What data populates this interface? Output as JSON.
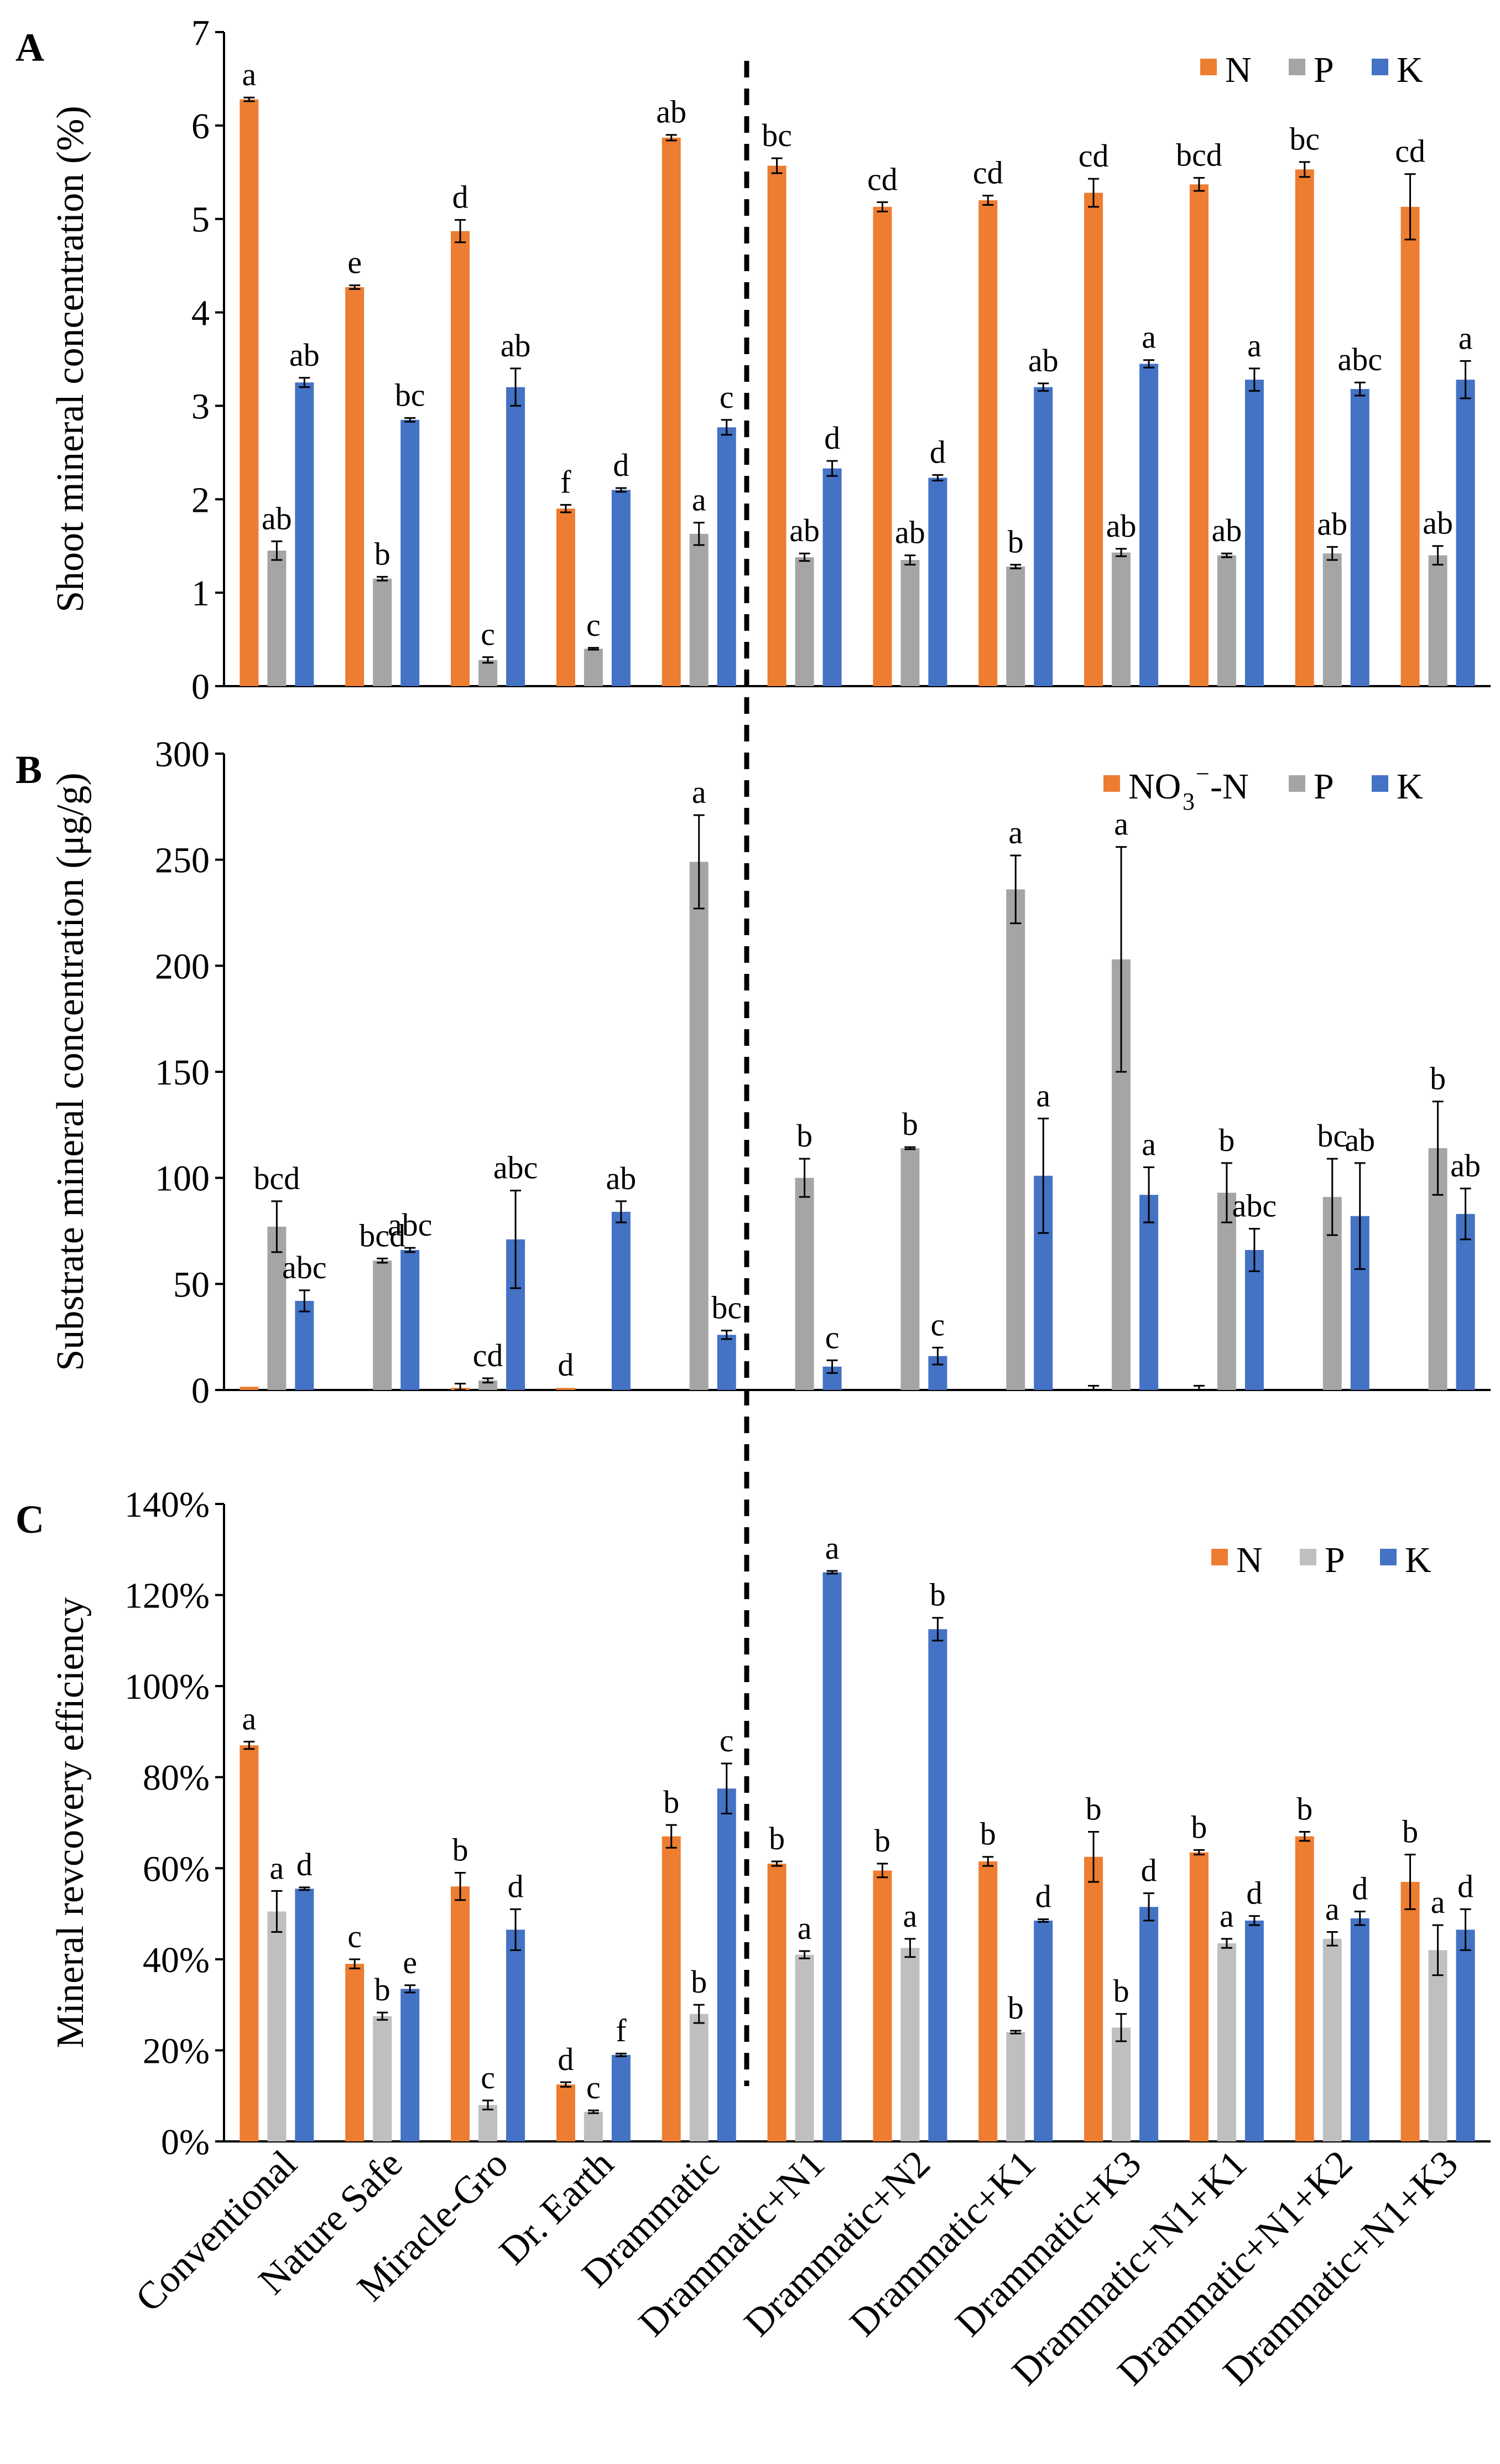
{
  "colors": {
    "N": "#ED7D31",
    "P_grey": "#A5A5A5",
    "P_light": "#BFBFBF",
    "K": "#4472C4",
    "axis": "#000000"
  },
  "categories": [
    "Conventional",
    "Nature Safe",
    "Miracle-Gro",
    "Dr. Earth",
    "Drammatic",
    "Drammatic+N1",
    "Drammatic+N2",
    "Drammatic+K1",
    "Drammatic+K3",
    "Drammatic+N1+K1",
    "Drammatic+N1+K2",
    "Drammatic+N1+K3"
  ],
  "chart_data": [
    {
      "type": "bar",
      "panel_label": "A",
      "ylabel": "Shoot mineral concentration (%)",
      "ylim": [
        0,
        7
      ],
      "yticks": [
        "0",
        "1",
        "2",
        "3",
        "4",
        "5",
        "6",
        "7"
      ],
      "legend": [
        "N",
        "P",
        "K"
      ],
      "legend_position": "top-right",
      "categories": [
        "Conventional",
        "Nature Safe",
        "Miracle-Gro",
        "Dr. Earth",
        "Drammatic",
        "Drammatic+N1",
        "Drammatic+N2",
        "Drammatic+K1",
        "Drammatic+K3",
        "Drammatic+N1+K1",
        "Drammatic+N1+K2",
        "Drammatic+N1+K3"
      ],
      "series": [
        {
          "name": "N",
          "color": "#ED7D31",
          "values": [
            6.28,
            4.27,
            4.87,
            1.9,
            5.87,
            5.57,
            5.13,
            5.2,
            5.28,
            5.37,
            5.53,
            5.13
          ],
          "errors": [
            0.02,
            0.02,
            0.12,
            0.04,
            0.03,
            0.08,
            0.05,
            0.05,
            0.15,
            0.07,
            0.08,
            0.35
          ],
          "labels": [
            "a",
            "e",
            "d",
            "f",
            "ab",
            "bc",
            "cd",
            "cd",
            "cd",
            "bcd",
            "bc",
            "cd"
          ]
        },
        {
          "name": "P",
          "color": "#A5A5A5",
          "values": [
            1.45,
            1.15,
            0.28,
            0.4,
            1.63,
            1.38,
            1.35,
            1.28,
            1.43,
            1.4,
            1.42,
            1.4
          ],
          "errors": [
            0.1,
            0.02,
            0.03,
            0.01,
            0.12,
            0.04,
            0.05,
            0.02,
            0.04,
            0.02,
            0.07,
            0.1
          ],
          "labels": [
            "ab",
            "b",
            "c",
            "c",
            "a",
            "ab",
            "ab",
            "b",
            "ab",
            "ab",
            "ab",
            "ab"
          ]
        },
        {
          "name": "K",
          "color": "#4472C4",
          "values": [
            3.25,
            2.85,
            3.2,
            2.1,
            2.77,
            2.33,
            2.23,
            3.2,
            3.45,
            3.28,
            3.18,
            3.28
          ],
          "errors": [
            0.05,
            0.02,
            0.2,
            0.02,
            0.08,
            0.08,
            0.03,
            0.04,
            0.04,
            0.12,
            0.07,
            0.2
          ],
          "labels": [
            "ab",
            "bc",
            "ab",
            "d",
            "c",
            "d",
            "d",
            "ab",
            "a",
            "a",
            "abc",
            "a"
          ]
        }
      ]
    },
    {
      "type": "bar",
      "panel_label": "B",
      "ylabel": "Substrate mineral concentration (μg/g)",
      "ylim": [
        0,
        300
      ],
      "yticks": [
        "0",
        "50",
        "100",
        "150",
        "200",
        "250",
        "300"
      ],
      "legend": [
        "NO",
        "3",
        "−",
        "-N",
        "P",
        "K"
      ],
      "legend_position": "top-right",
      "categories": [
        "Conventional",
        "Nature Safe",
        "Miracle-Gro",
        "Dr. Earth",
        "Drammatic",
        "Drammatic+N1",
        "Drammatic+N2",
        "Drammatic+K1",
        "Drammatic+K3",
        "Drammatic+N1+K1",
        "Drammatic+N1+K2",
        "Drammatic+N1+K3"
      ],
      "series": [
        {
          "name": "NO3−-N",
          "color": "#ED7D31",
          "values": [
            1.5,
            0,
            1.0,
            1.0,
            0,
            0,
            0,
            0,
            0,
            0,
            0,
            0
          ],
          "errors": [
            0,
            0,
            2.0,
            0,
            0,
            0,
            0,
            0,
            2.0,
            2.0,
            0,
            0
          ],
          "labels": [
            "",
            "",
            "",
            "d",
            "",
            "",
            "",
            "",
            "",
            "",
            "",
            ""
          ]
        },
        {
          "name": "P",
          "color": "#A5A5A5",
          "values": [
            77,
            61,
            4.5,
            0,
            249,
            100,
            114,
            236,
            203,
            93,
            91,
            114
          ],
          "errors": [
            12,
            1,
            1,
            0,
            22,
            9,
            0.5,
            16,
            53,
            14,
            18,
            22
          ],
          "labels": [
            "bcd",
            "bcd",
            "cd",
            "",
            "a",
            "b",
            "b",
            "a",
            "a",
            "b",
            "bc",
            "b"
          ]
        },
        {
          "name": "K",
          "color": "#4472C4",
          "values": [
            42,
            66,
            71,
            84,
            26,
            11,
            16,
            101,
            92,
            66,
            82,
            83
          ],
          "errors": [
            5,
            1,
            23,
            5,
            2,
            3,
            4,
            27,
            13,
            10,
            25,
            12
          ],
          "labels": [
            "abc",
            "abc",
            "abc",
            "ab",
            "bc",
            "c",
            "c",
            "a",
            "a",
            "abc",
            "ab",
            "ab"
          ]
        }
      ]
    },
    {
      "type": "bar",
      "panel_label": "C",
      "ylabel": "Mineral revcovery efficiency",
      "ylim": [
        0,
        140
      ],
      "yticks": [
        "0%",
        "20%",
        "40%",
        "60%",
        "80%",
        "100%",
        "120%",
        "140%"
      ],
      "legend": [
        "N",
        "P",
        "K"
      ],
      "legend_position": "top-right",
      "categories": [
        "Conventional",
        "Nature Safe",
        "Miracle-Gro",
        "Dr. Earth",
        "Drammatic",
        "Drammatic+N1",
        "Drammatic+N2",
        "Drammatic+K1",
        "Drammatic+K3",
        "Drammatic+N1+K1",
        "Drammatic+N1+K2",
        "Drammatic+N1+K3"
      ],
      "series": [
        {
          "name": "N",
          "color": "#ED7D31",
          "values": [
            87,
            39,
            56,
            12.5,
            67,
            61,
            59.5,
            61.5,
            62.5,
            63.5,
            67,
            57
          ],
          "errors": [
            0.8,
            1.0,
            3.0,
            0.5,
            2.5,
            0.5,
            1.5,
            1.0,
            5.5,
            0.5,
            1.0,
            6.0
          ],
          "labels": [
            "a",
            "c",
            "b",
            "d",
            "b",
            "b",
            "b",
            "b",
            "b",
            "b",
            "b",
            "b"
          ]
        },
        {
          "name": "P",
          "color": "#BFBFBF",
          "values": [
            50.5,
            27.5,
            8,
            6.5,
            28,
            41,
            42.5,
            24,
            25,
            43.5,
            44.5,
            42
          ],
          "errors": [
            4.5,
            0.8,
            1.0,
            0.3,
            2.0,
            0.8,
            2.0,
            0.3,
            3.0,
            1.0,
            1.5,
            5.5
          ],
          "labels": [
            "a",
            "b",
            "c",
            "c",
            "b",
            "a",
            "a",
            "b",
            "b",
            "a",
            "a",
            "a"
          ]
        },
        {
          "name": "K",
          "color": "#4472C4",
          "values": [
            55.5,
            33.5,
            46.5,
            19,
            77.5,
            125,
            112.5,
            48.5,
            51.5,
            48.5,
            49,
            46.5
          ],
          "errors": [
            0.3,
            0.8,
            4.5,
            0.3,
            5.5,
            0.3,
            2.5,
            0.3,
            3.0,
            1.0,
            1.5,
            4.5
          ],
          "labels": [
            "d",
            "e",
            "d",
            "f",
            "c",
            "a",
            "b",
            "d",
            "d",
            "d",
            "d",
            "d"
          ]
        }
      ]
    }
  ]
}
